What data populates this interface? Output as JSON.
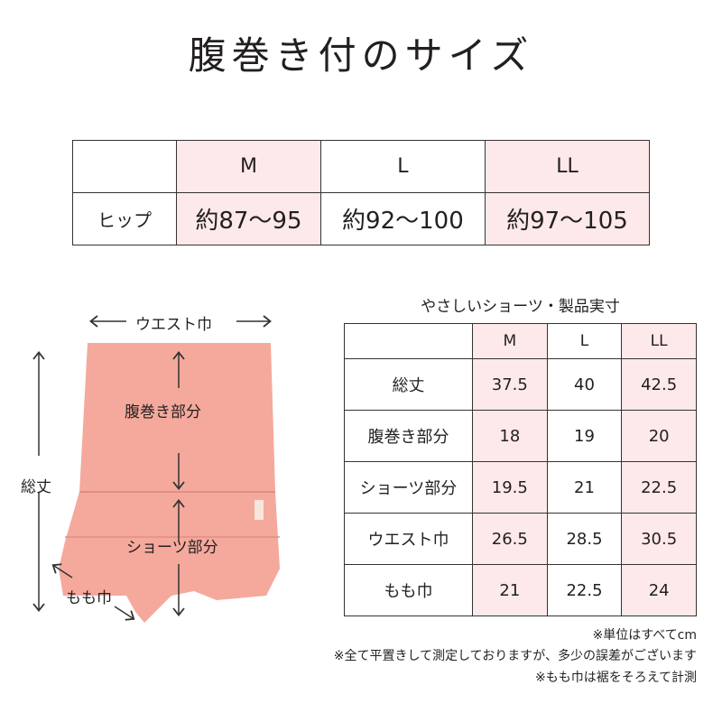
{
  "title": "腹巻き付のサイズ",
  "hip_table": {
    "sizes": [
      "M",
      "L",
      "LL"
    ],
    "row_label": "ヒップ",
    "values": [
      "約87〜95",
      "約92〜100",
      "約97〜105"
    ]
  },
  "diagram": {
    "waist": "ウエスト巾",
    "haramaki": "腹巻き部分",
    "total": "総丈",
    "shorts": "ショーツ部分",
    "thigh": "もも巾"
  },
  "size_table": {
    "caption": "やさしいショーツ・製品実寸",
    "sizes": [
      "M",
      "L",
      "LL"
    ],
    "rows": [
      {
        "label": "総丈",
        "values": [
          "37.5",
          "40",
          "42.5"
        ]
      },
      {
        "label": "腹巻き部分",
        "values": [
          "18",
          "19",
          "20"
        ]
      },
      {
        "label": "ショーツ部分",
        "values": [
          "19.5",
          "21",
          "22.5"
        ]
      },
      {
        "label": "ウエスト巾",
        "values": [
          "26.5",
          "28.5",
          "30.5"
        ]
      },
      {
        "label": "もも巾",
        "values": [
          "21",
          "22.5",
          "24"
        ]
      }
    ]
  },
  "notes": [
    "※単位はすべてcm",
    "※全て平置きして測定しておりますが、多少の誤差がございます",
    "※もも巾は裾をそろえて計測"
  ],
  "colors": {
    "highlight": "#fde9e9",
    "garment": "#f4a99c"
  }
}
